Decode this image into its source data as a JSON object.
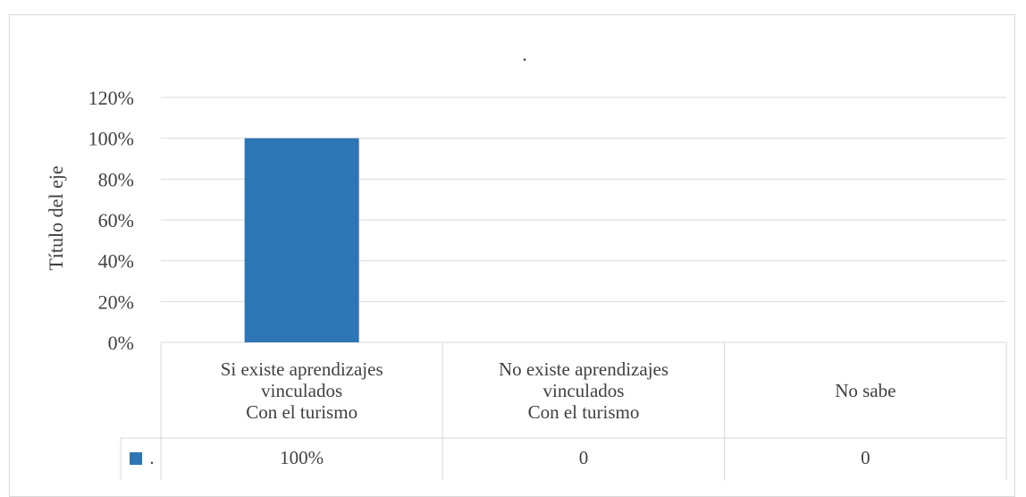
{
  "chart_data": {
    "type": "bar",
    "title": ".",
    "ylabel": "Título del eje",
    "xlabel": "",
    "categories": [
      [
        "Si existe aprendizajes",
        "vinculados",
        "Con el turismo"
      ],
      [
        "No existe aprendizajes",
        "vinculados",
        "Con el turismo"
      ],
      [
        "No sabe"
      ]
    ],
    "series": [
      {
        "name": ".",
        "values": [
          1.0,
          0,
          0
        ],
        "color": "#2e75b6",
        "table_values": [
          "100%",
          "0",
          "0"
        ]
      }
    ],
    "ylim": [
      0,
      1.2
    ],
    "yticks": [
      "0%",
      "20%",
      "40%",
      "60%",
      "80%",
      "100%",
      "120%"
    ],
    "grid": true,
    "legend": "data-table"
  }
}
